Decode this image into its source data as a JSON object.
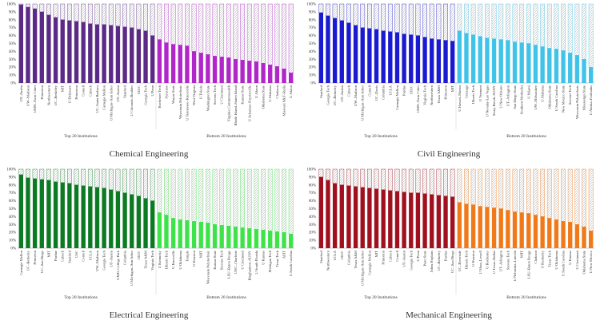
{
  "chart_data": [
    {
      "type": "bar",
      "title": "Chemical Engineering",
      "colors": {
        "top": "#5b2a86",
        "bottom": "#b026c9"
      },
      "ylim": [
        0,
        100
      ],
      "yticks": [
        "0%",
        "10%",
        "20%",
        "30%",
        "40%",
        "50%",
        "60%",
        "70%",
        "80%",
        "90%",
        "100%"
      ],
      "group_labels": [
        "Top 20 Institutions",
        "Bottom 20 Institutions"
      ],
      "top_categories": [
        "UT–Austin",
        "UW–Madison",
        "UMN–Twin Cities",
        "Princeton",
        "Northwestern",
        "UC–Berkeley",
        "MIT",
        "U Delaware",
        "Princeton",
        "Cornell",
        "Caltech",
        "UC–Santa Barbara",
        "Carnegie Mellon",
        "U Michigan–Ann Arbor",
        "UT–Austin",
        "Stanford",
        "U Colorado–Boulder",
        "UIUC",
        "Georgia Tech",
        "U Penn"
      ],
      "top_values": [
        99,
        96,
        94,
        90,
        86,
        83,
        80,
        79,
        78,
        77,
        75,
        74,
        74,
        73,
        72,
        71,
        70,
        68,
        66,
        60
      ],
      "bottom_categories": [
        "Rochester Tech",
        "Syracuse",
        "Wayne State",
        "Wisconsin Polytechnic",
        "U Tennessee–Knoxville",
        "West Virginia",
        "U Toledo",
        "Washington State",
        "Stevens Tech",
        "U Cincinnati",
        "Virginia Commonwealth",
        "Rhode Island–Staten Island",
        "Kansas State",
        "U Arkansas–Fayetteville",
        "U Akron",
        "Oklahoma State",
        "U Alabama",
        "Clarkson",
        "Missouri S&T–Rolla",
        "U Akron"
      ],
      "bottom_values": [
        55,
        51,
        49,
        48,
        47,
        40,
        38,
        36,
        34,
        33,
        32,
        30,
        29,
        28,
        27,
        25,
        23,
        21,
        18,
        13
      ]
    },
    {
      "type": "bar",
      "title": "Civil Engineering",
      "colors": {
        "top": "#1a1ad0",
        "bottom": "#3fc3e8"
      },
      "ylim": [
        0,
        100
      ],
      "yticks": [
        "0%",
        "10%",
        "20%",
        "30%",
        "40%",
        "50%",
        "60%",
        "70%",
        "80%",
        "90%",
        "100%"
      ],
      "group_labels": [
        "Top 20 Institutions",
        "Bottom 20 Institutions"
      ],
      "top_categories": [
        "Stanford",
        "Georgia Tech",
        "UC–Berkeley",
        "UT–Austin",
        "Caltech",
        "UW–Madison",
        "U Michigan–Ann Arbor",
        "Cornell",
        "UC–Davis",
        "Columbia",
        "UCLA",
        "Carnegie Mellon",
        "Purdue",
        "UIUC",
        "UMN–Twin Cities",
        "Virginia Tech",
        "Northwestern",
        "Texas A&M",
        "Princeton",
        "MIT"
      ],
      "top_values": [
        89,
        85,
        82,
        79,
        76,
        73,
        70,
        69,
        68,
        66,
        65,
        64,
        62,
        61,
        60,
        58,
        56,
        55,
        54,
        53
      ],
      "bottom_values": [
        66,
        63,
        61,
        59,
        57,
        56,
        55,
        54,
        52,
        51,
        50,
        48,
        46,
        44,
        43,
        41,
        38,
        35,
        30,
        20
      ],
      "bottom_categories": [
        "U Hawaii–Manoa",
        "Gonzaga",
        "Illinois Tech",
        "U Vermont",
        "U Nevada–Las Vegas",
        "Stony Brook–SUNY",
        "U New Orleans",
        "UT–Arlington",
        "San Diego State",
        "Southern Methodist",
        "U Miami",
        "UW–Milwaukee",
        "U Alabama",
        "Oklahoma State",
        "U South Carolina",
        "New Mexico State",
        "Stevens Tech",
        "Wisconsin Polytechnic",
        "Mississippi State",
        "U Alaska–Fairbanks"
      ]
    },
    {
      "type": "bar",
      "title": "Electrical Engineering",
      "colors": {
        "top": "#0b7a22",
        "bottom": "#3ee34a"
      },
      "ylim": [
        0,
        100
      ],
      "yticks": [
        "0%",
        "10%",
        "20%",
        "30%",
        "40%",
        "50%",
        "60%",
        "70%",
        "80%",
        "90%",
        "100%"
      ],
      "group_labels": [
        "Top 20 Institutions",
        "Bottom 20 Institutions"
      ],
      "top_categories": [
        "Carnegie Mellon",
        "UC–Berkeley",
        "Princeton",
        "UC–San Diego",
        "MIT",
        "Purdue",
        "Caltech",
        "Stanford",
        "USC",
        "Cornell",
        "UCLA",
        "UW–Madison",
        "Georgia Tech",
        "UT–Austin",
        "UMD–College Park",
        "Columbia",
        "U Michigan–Ann Arbor",
        "UIUC",
        "Texas A&M",
        "Virginia Tech"
      ],
      "top_values": [
        93,
        89,
        88,
        87,
        86,
        84,
        83,
        82,
        80,
        79,
        78,
        77,
        76,
        74,
        72,
        70,
        68,
        66,
        63,
        60
      ],
      "bottom_categories": [
        "U Kentucky",
        "Illinois Tech",
        "U Knoxville",
        "U Oklahoma",
        "Temple",
        "U Houston",
        "NJIT",
        "Wisconsin Polytechnic",
        "Kansas State",
        "Stevens Tech",
        "LSU–Baton Rouge",
        "UNC–Charlotte",
        "U Cincinnati",
        "Binghamton–SUNY",
        "U South Florida",
        "U Kansas",
        "Michigan Tech",
        "Texas Tech",
        "AFIT",
        "U South Carolina"
      ],
      "bottom_values": [
        45,
        42,
        38,
        36,
        35,
        34,
        33,
        32,
        30,
        29,
        28,
        27,
        26,
        25,
        24,
        23,
        22,
        21,
        20,
        18
      ]
    },
    {
      "type": "bar",
      "title": "Mechanical Engineering",
      "colors": {
        "top": "#a0101e",
        "bottom": "#f07a1a"
      },
      "ylim": [
        0,
        100
      ],
      "yticks": [
        "0%",
        "10%",
        "20%",
        "30%",
        "40%",
        "50%",
        "60%",
        "70%",
        "80%",
        "90%",
        "100%"
      ],
      "group_labels": [
        "Top 20 Institutions",
        "Bottom 20 Institutions"
      ],
      "top_categories": [
        "Stanford",
        "Northwestern",
        "UCLA",
        "UIUC",
        "Columbia",
        "Texas A&M",
        "U Michigan–Ann Arbor",
        "Carnegie Mellon",
        "MIT",
        "Princeton",
        "Caltech",
        "Cornell",
        "UT–Austin",
        "Georgia Tech",
        "U Penn",
        "Penn State",
        "Johns Hopkins",
        "UC–Berkeley",
        "Purdue",
        "UC–San Diego"
      ],
      "top_values": [
        90,
        86,
        82,
        80,
        79,
        78,
        77,
        76,
        75,
        74,
        73,
        72,
        71,
        70,
        70,
        69,
        68,
        67,
        66,
        65
      ],
      "bottom_categories": [
        "UC–Riverside",
        "Illinois Tech",
        "U Houston",
        "U Mass–Lowell",
        "U Rochester",
        "U Texas–Dallas",
        "UT–Arlington",
        "Stevens Tech",
        "U Nebraska–Lincoln",
        "NJIT",
        "LSU–Baton Rouge",
        "Clarkson",
        "U Kentucky",
        "Texas Tech",
        "U Oklahoma",
        "U South Carolina",
        "U Kansas",
        "U Cincinnati",
        "Oklahoma State",
        "U New Mexico"
      ],
      "bottom_values": [
        58,
        56,
        55,
        53,
        52,
        51,
        50,
        48,
        46,
        45,
        44,
        42,
        40,
        38,
        36,
        34,
        33,
        30,
        27,
        22
      ]
    }
  ]
}
